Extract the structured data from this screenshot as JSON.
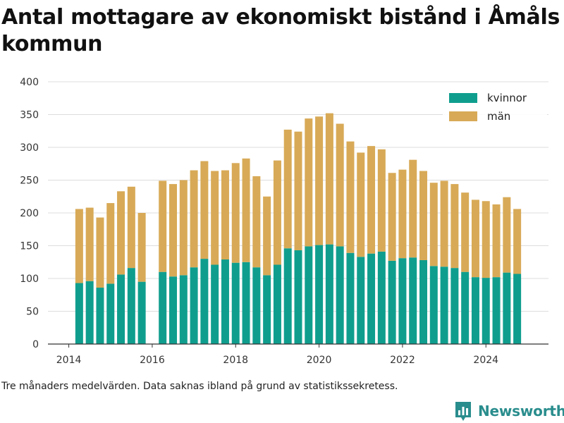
{
  "header": {
    "title": "Antal mottagare av ekonomiskt bistånd i Åmåls kommun"
  },
  "footer": {
    "note": "Tre månaders medelvärden. Data saknas ibland på grund av statistikssekretess.",
    "brand": "Newsworthy",
    "brand_icon": "bar-chart-logo-icon"
  },
  "colors": {
    "kvinnor": "#0f9e8e",
    "man": "#d8aa57",
    "brand": "#2a8d8d",
    "axis": "#333333",
    "grid": "#dddddd"
  },
  "chart_data": {
    "type": "bar",
    "stacked": true,
    "x": [
      "2014-04",
      "2014-07",
      "2014-10",
      "2015-01",
      "2015-04",
      "2015-07",
      "2015-10",
      "2016-04",
      "2016-07",
      "2016-10",
      "2017-01",
      "2017-04",
      "2017-07",
      "2017-10",
      "2018-01",
      "2018-04",
      "2018-07",
      "2018-10",
      "2019-01",
      "2019-04",
      "2019-07",
      "2019-10",
      "2020-01",
      "2020-04",
      "2020-07",
      "2020-10",
      "2021-01",
      "2021-04",
      "2021-07",
      "2021-10",
      "2022-01",
      "2022-04",
      "2022-07",
      "2022-10",
      "2023-01",
      "2023-04",
      "2023-07",
      "2023-10",
      "2024-01",
      "2024-04",
      "2024-07",
      "2024-10"
    ],
    "series": [
      {
        "name": "kvinnor",
        "values": [
          93,
          96,
          86,
          92,
          106,
          116,
          95,
          110,
          103,
          105,
          117,
          130,
          121,
          129,
          124,
          125,
          117,
          105,
          121,
          146,
          143,
          149,
          151,
          152,
          149,
          139,
          133,
          138,
          141,
          127,
          131,
          132,
          128,
          119,
          118,
          116,
          110,
          102,
          101,
          102,
          109,
          107
        ]
      },
      {
        "name": "män",
        "values": [
          113,
          112,
          107,
          123,
          127,
          124,
          105,
          139,
          141,
          145,
          148,
          149,
          143,
          136,
          152,
          158,
          139,
          120,
          159,
          181,
          181,
          195,
          196,
          200,
          187,
          170,
          159,
          164,
          156,
          134,
          135,
          149,
          136,
          127,
          131,
          128,
          121,
          118,
          117,
          111,
          115,
          99
        ]
      }
    ],
    "xticks": [
      "2014",
      "2016",
      "2018",
      "2020",
      "2022",
      "2024"
    ],
    "yticks": [
      0,
      50,
      100,
      150,
      200,
      250,
      300,
      350,
      400
    ],
    "ylim": [
      0,
      400
    ],
    "xlim": [
      "2013-07",
      "2025-07"
    ],
    "legend": {
      "position": "top-right",
      "entries": [
        "kvinnor",
        "män"
      ]
    },
    "grid": "horizontal"
  }
}
